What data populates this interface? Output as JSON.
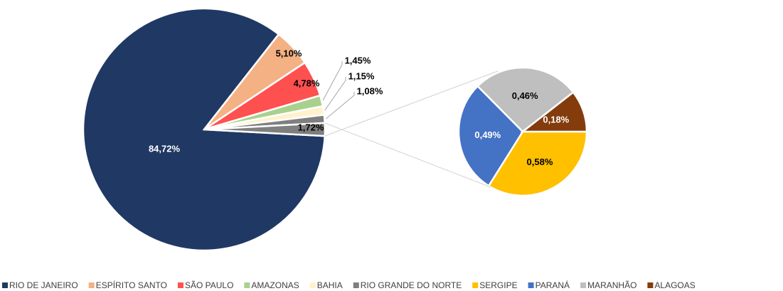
{
  "chart_data": {
    "type": "pie-of-pie",
    "main": {
      "categories": [
        "RIO DE JANEIRO",
        "ESPÍRITO SANTO",
        "SÃO PAULO",
        "AMAZONAS",
        "BAHIA",
        "RIO GRANDE DO NORTE"
      ],
      "values": [
        84.72,
        5.1,
        4.78,
        1.45,
        1.15,
        1.08
      ],
      "value_labels": [
        "84,72%",
        "5,10%",
        "4,78%",
        "1,45%",
        "1,15%",
        "1,08%"
      ],
      "colors": [
        "#203864",
        "#f4b183",
        "#ff5050",
        "#a9d18e",
        "#fff2cc",
        "#7f7f7f"
      ],
      "other_value": 1.72,
      "other_label": "1,72%",
      "other_color": "#7f7f7f"
    },
    "secondary": {
      "categories": [
        "SERGIPE",
        "PARANÁ",
        "MARANHÃO",
        "ALAGOAS"
      ],
      "values": [
        0.58,
        0.49,
        0.46,
        0.18
      ],
      "value_labels": [
        "0,58%",
        "0,49%",
        "0,46%",
        "0,18%"
      ],
      "colors": [
        "#ffc000",
        "#4472c4",
        "#bfbfbf",
        "#843c0c"
      ]
    }
  }
}
